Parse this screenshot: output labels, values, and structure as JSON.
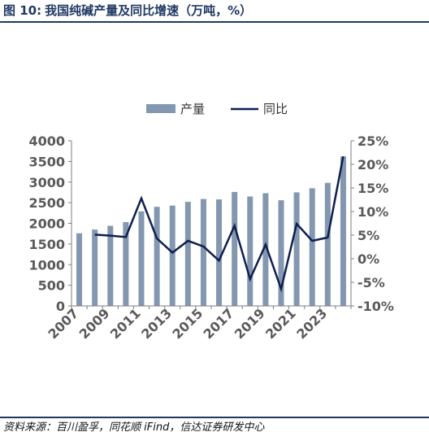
{
  "header": {
    "figure_label": "图 10:",
    "title": "我国纯碱产量及同比增速（万吨，%）"
  },
  "footer": {
    "source": "资料来源：百川盈孚，同花顺 iFind，信达证券研发中心"
  },
  "colors": {
    "bar": "#8497b0",
    "line": "#0e1f4f",
    "title": "#1f3864",
    "axis": "#7f7f7f"
  },
  "chart_data": {
    "type": "bar+line",
    "categories": [
      "2007",
      "2008",
      "2009",
      "2010",
      "2011",
      "2012",
      "2013",
      "2014",
      "2015",
      "2016",
      "2017",
      "2018",
      "2019",
      "2020",
      "2021",
      "2022",
      "2023",
      "2024"
    ],
    "x_tick_labels": [
      "2007",
      "2009",
      "2011",
      "2013",
      "2015",
      "2017",
      "2019",
      "2021",
      "2023"
    ],
    "series": [
      {
        "name": "产量",
        "type": "bar",
        "axis": "left",
        "values": [
          1760,
          1850,
          1940,
          2030,
          2290,
          2400,
          2430,
          2520,
          2590,
          2580,
          2760,
          2650,
          2730,
          2560,
          2750,
          2850,
          2980,
          3620
        ]
      },
      {
        "name": "同比",
        "type": "line",
        "axis": "right",
        "values": [
          null,
          5.1,
          4.9,
          4.6,
          12.8,
          4.3,
          1.3,
          3.8,
          2.6,
          -0.4,
          7.0,
          -4.3,
          3.0,
          -6.4,
          7.4,
          3.8,
          4.5,
          21.7
        ]
      }
    ],
    "y_left": {
      "min": 0,
      "max": 4000,
      "step": 500,
      "tick_labels": [
        "0",
        "500",
        "1000",
        "1500",
        "2000",
        "2500",
        "3000",
        "3500",
        "4000"
      ]
    },
    "y_right": {
      "min": -10,
      "max": 25,
      "step": 5,
      "tick_labels": [
        "-10%",
        "-5%",
        "0%",
        "5%",
        "10%",
        "15%",
        "20%",
        "25%"
      ]
    },
    "legend_position": "top-center",
    "grid": false
  }
}
